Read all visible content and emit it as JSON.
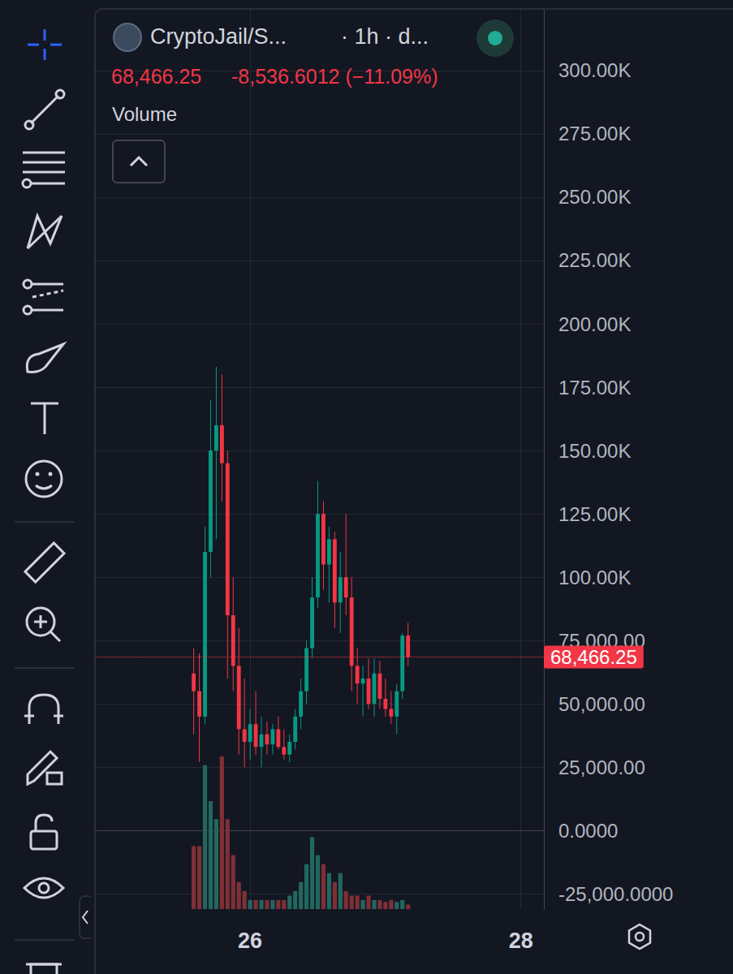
{
  "chart_data": {
    "type": "candlestick",
    "title": "CryptoJail/S...",
    "subtitle": "· 1h · d...",
    "annotations": [
      "68,466.25",
      "-8,536.6012 (−11.09%)"
    ],
    "x": [
      25.5833,
      25.625,
      25.6667,
      25.7083,
      25.75,
      25.7917,
      25.8333,
      25.875,
      25.9167,
      25.9583,
      26,
      26.0417,
      26.0833,
      26.125,
      26.1667,
      26.2083,
      26.25,
      26.2917,
      26.3333,
      26.375,
      26.4167,
      26.4583,
      26.5,
      26.5417,
      26.5833,
      26.625,
      26.6667,
      26.7083,
      26.75,
      26.7917,
      26.8333,
      26.875,
      26.9167,
      26.9583,
      27,
      27.0417,
      27.0833,
      27.125,
      27.1667
    ],
    "series": [
      {
        "type": "candlestick",
        "open": [
          62000,
          55000,
          45000,
          110000,
          150000,
          160000,
          145000,
          85000,
          65000,
          40000,
          35000,
          42000,
          33000,
          38000,
          34000,
          40000,
          33000,
          30000,
          35000,
          45000,
          55000,
          72000,
          92000,
          125000,
          105000,
          115000,
          90000,
          100000,
          92000,
          65000,
          58000,
          60000,
          50000,
          62000,
          52000,
          48000,
          45000,
          55000,
          77002.85
        ],
        "high": [
          72000,
          70000,
          120000,
          170000,
          183000,
          180000,
          150000,
          100000,
          80000,
          60000,
          48000,
          55000,
          45000,
          43000,
          42000,
          45000,
          40000,
          38000,
          48000,
          60000,
          75000,
          100000,
          138000,
          130000,
          120000,
          118000,
          110000,
          125000,
          100000,
          72000,
          65000,
          68000,
          68000,
          67000,
          60000,
          55000,
          58000,
          78000,
          82000
        ],
        "low": [
          38000,
          27000,
          42000,
          100000,
          115000,
          130000,
          60000,
          55000,
          30000,
          25000,
          28000,
          30000,
          25000,
          30000,
          30000,
          32000,
          28000,
          27000,
          32000,
          40000,
          50000,
          68000,
          88000,
          95000,
          90000,
          80000,
          78000,
          85000,
          55000,
          50000,
          45000,
          48000,
          45000,
          48000,
          45000,
          42000,
          38000,
          52000,
          65000
        ],
        "close": [
          55000,
          45000,
          110000,
          150000,
          160000,
          145000,
          85000,
          65000,
          40000,
          35000,
          42000,
          33000,
          38000,
          34000,
          40000,
          33000,
          30000,
          35000,
          45000,
          55000,
          72000,
          92000,
          125000,
          105000,
          115000,
          90000,
          100000,
          92000,
          65000,
          58000,
          60000,
          50000,
          62000,
          52000,
          48000,
          45000,
          55000,
          77002.85,
          68466.25
        ],
        "colors": [
          "#f23645",
          "#f23645",
          "#089981",
          "#089981",
          "#089981",
          "#f23645",
          "#f23645",
          "#f23645",
          "#f23645",
          "#f23645",
          "#089981",
          "#f23645",
          "#089981",
          "#f23645",
          "#089981",
          "#f23645",
          "#f23645",
          "#089981",
          "#089981",
          "#089981",
          "#089981",
          "#089981",
          "#089981",
          "#f23645",
          "#089981",
          "#f23645",
          "#089981",
          "#f23645",
          "#f23645",
          "#f23645",
          "#089981",
          "#f23645",
          "#089981",
          "#f23645",
          "#f23645",
          "#f23645",
          "#089981",
          "#089981",
          "#f23645"
        ]
      },
      {
        "name": "Volume",
        "type": "bar",
        "axis": "y2",
        "values": [
          7,
          7,
          16,
          12,
          10,
          17,
          10,
          6,
          3,
          2,
          1,
          1,
          1,
          1,
          1,
          1,
          1,
          1.5,
          2,
          3,
          5,
          8,
          6,
          5,
          4,
          3,
          4,
          2,
          1.5,
          1.5,
          1,
          1.5,
          1,
          1,
          0.8,
          1,
          0.8,
          1,
          0.5
        ],
        "colors": [
          "#7f2f36",
          "#7f2f36",
          "#22675f",
          "#22675f",
          "#22675f",
          "#7f2f36",
          "#7f2f36",
          "#7f2f36",
          "#7f2f36",
          "#7f2f36",
          "#22675f",
          "#7f2f36",
          "#22675f",
          "#7f2f36",
          "#22675f",
          "#7f2f36",
          "#7f2f36",
          "#22675f",
          "#22675f",
          "#22675f",
          "#22675f",
          "#22675f",
          "#22675f",
          "#7f2f36",
          "#22675f",
          "#7f2f36",
          "#22675f",
          "#7f2f36",
          "#7f2f36",
          "#7f2f36",
          "#22675f",
          "#7f2f36",
          "#22675f",
          "#7f2f36",
          "#7f2f36",
          "#7f2f36",
          "#22675f",
          "#22675f",
          "#7f2f36"
        ]
      }
    ],
    "last_price": {
      "value": 68466.25,
      "label": "68,466.25",
      "color": "#f23645",
      "line_style": "dotted"
    },
    "xlim": [
      24.86,
      28.17
    ],
    "xticks": [
      26,
      28
    ],
    "ylim": [
      -31000,
      324000
    ],
    "yticks": [
      {
        "value": -25000,
        "label": "-25,000.0000"
      },
      {
        "value": 0,
        "label": "0.0000"
      },
      {
        "value": 25000,
        "label": "25,000.00"
      },
      {
        "value": 50000,
        "label": "50,000.00"
      },
      {
        "value": 75000,
        "label": "75,000.00"
      },
      {
        "value": 100000,
        "label": "100.00K"
      },
      {
        "value": 125000,
        "label": "125.00K"
      },
      {
        "value": 150000,
        "label": "150.00K"
      },
      {
        "value": 175000,
        "label": "175.00K"
      },
      {
        "value": 200000,
        "label": "200.00K"
      },
      {
        "value": 225000,
        "label": "225.00K"
      },
      {
        "value": 250000,
        "label": "250.00K"
      },
      {
        "value": 275000,
        "label": "275.00K"
      },
      {
        "value": 300000,
        "label": "300.00K"
      }
    ],
    "y2lim": [
      0,
      100
    ],
    "grid": true
  }
}
